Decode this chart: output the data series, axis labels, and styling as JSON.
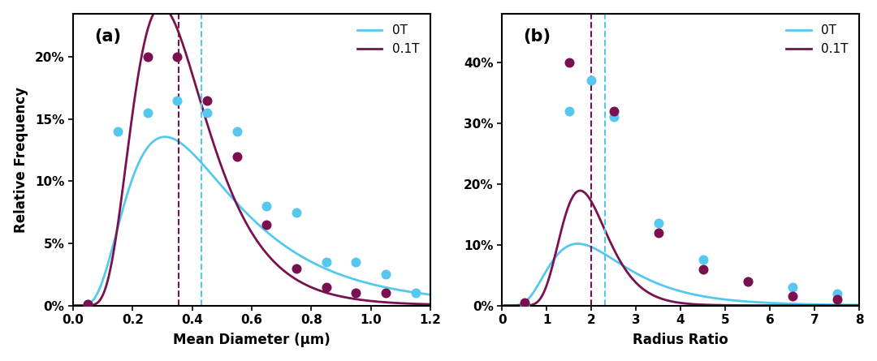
{
  "panel_a": {
    "title": "(a)",
    "xlabel": "Mean Diameter (μm)",
    "ylabel": "Relative Frequency",
    "xlim": [
      0.0,
      1.2
    ],
    "ylim": [
      0.0,
      0.235
    ],
    "yticks": [
      0.0,
      0.05,
      0.1,
      0.15,
      0.2
    ],
    "ytick_labels": [
      "0%",
      "5%",
      "10%",
      "15%",
      "20%"
    ],
    "xticks": [
      0.0,
      0.2,
      0.4,
      0.6,
      0.8,
      1.0,
      1.2
    ],
    "color_0T": "#55C8F0",
    "color_01T": "#7B1050",
    "vline_0T": 0.43,
    "vline_01T": 0.355,
    "dots_0T_x": [
      0.05,
      0.15,
      0.25,
      0.35,
      0.45,
      0.55,
      0.65,
      0.75,
      0.85,
      0.95,
      1.05,
      1.15
    ],
    "dots_0T_y": [
      0.001,
      0.14,
      0.155,
      0.165,
      0.155,
      0.14,
      0.08,
      0.075,
      0.035,
      0.035,
      0.025,
      0.01
    ],
    "dots_01T_x": [
      0.05,
      0.25,
      0.35,
      0.45,
      0.55,
      0.65,
      0.75,
      0.85,
      0.95,
      1.05
    ],
    "dots_01T_y": [
      0.001,
      0.2,
      0.2,
      0.165,
      0.12,
      0.065,
      0.03,
      0.015,
      0.01,
      0.01
    ],
    "curve_0T_mu": -0.84,
    "curve_0T_sigma": 0.58,
    "curve_0T_scale": 0.072,
    "curve_01T_mu": -1.04,
    "curve_01T_sigma": 0.42,
    "curve_01T_scale": 0.082
  },
  "panel_b": {
    "title": "(b)",
    "xlabel": "Radius Ratio",
    "xlim": [
      0,
      8
    ],
    "ylim": [
      0.0,
      0.48
    ],
    "yticks": [
      0.0,
      0.1,
      0.2,
      0.3,
      0.4
    ],
    "ytick_labels": [
      "0%",
      "10%",
      "20%",
      "30%",
      "40%"
    ],
    "xticks": [
      0,
      1,
      2,
      3,
      4,
      5,
      6,
      7,
      8
    ],
    "color_0T": "#55C8F0",
    "color_01T": "#7B1050",
    "vline_0T": 2.3,
    "vline_01T": 2.0,
    "dots_0T_x": [
      0.5,
      1.5,
      2.0,
      2.5,
      3.5,
      4.5,
      5.5,
      6.5,
      7.5
    ],
    "dots_0T_y": [
      0.001,
      0.32,
      0.37,
      0.31,
      0.135,
      0.075,
      0.04,
      0.03,
      0.02
    ],
    "dots_01T_x": [
      0.5,
      1.5,
      2.5,
      3.5,
      4.5,
      5.5,
      6.5,
      7.5
    ],
    "dots_01T_y": [
      0.005,
      0.4,
      0.32,
      0.12,
      0.06,
      0.04,
      0.015,
      0.01
    ],
    "curve_0T_mu": 0.78,
    "curve_0T_sigma": 0.5,
    "curve_0T_scale": 0.245,
    "curve_01T_mu": 0.65,
    "curve_01T_sigma": 0.3,
    "curve_01T_scale": 0.26
  },
  "legend_0T": "0T",
  "legend_01T": "0.1T",
  "dot_size": 75,
  "linewidth": 2.0,
  "fig_bg": "#ffffff"
}
